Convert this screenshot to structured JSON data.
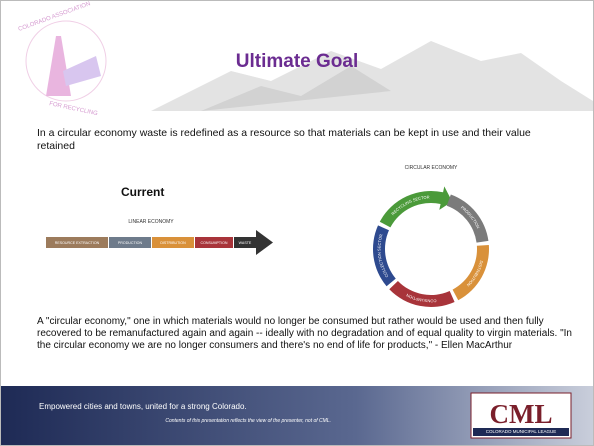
{
  "logo": {
    "top": "COLORADO ASSOCIATION",
    "bottom": "FOR RECYCLING"
  },
  "title": "Ultimate Goal",
  "intro": "In a circular economy waste is redefined as a resource so that materials can be kept in use and their value retained",
  "linear": {
    "heading": "Current",
    "label": "LINEAR ECONOMY",
    "steps": [
      "RESOURCE EXTRACTION",
      "PRODUCTION",
      "DISTRIBUTION",
      "CONSUMPTION",
      "WASTE"
    ]
  },
  "circular": {
    "label": "CIRCULAR ECONOMY",
    "segments": [
      "RECYCLING SECTOR",
      "PRODUCTION",
      "DISTRIBUTION",
      "CONSUMPTION",
      "COLLECTION SECTOR"
    ]
  },
  "quote": "A \"circular economy,\" one in which materials would no longer be consumed but rather would be used and then fully recovered to be remanufactured again and again -- ideally with no degradation and of equal quality to virgin materials. \"In the circular economy we are no longer consumers and there's no end of life for products,\"  - Ellen MacArthur",
  "footer": {
    "tagline": "Empowered cities and towns, united for a strong Colorado.",
    "disclaimer": "Contents of this presentation reflects the view of the presenter, not of CML.",
    "logo": "CML",
    "logo_sub": "COLORADO MUNICIPAL LEAGUE"
  }
}
